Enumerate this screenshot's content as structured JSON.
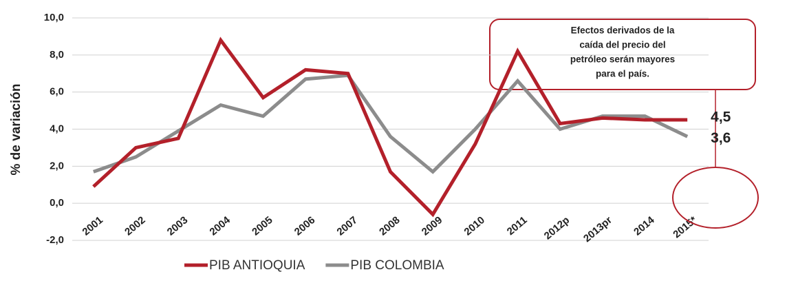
{
  "chart_data": {
    "type": "line",
    "y_label": "% de variación",
    "categories": [
      "2001",
      "2002",
      "2003",
      "2004",
      "2005",
      "2006",
      "2007",
      "2008",
      "2009",
      "2010",
      "2011",
      "2012p",
      "2013pr",
      "2014",
      "2015*"
    ],
    "series": [
      {
        "name": "PIB ANTIOQUIA",
        "color": "#b3202a",
        "values": [
          0.9,
          3.0,
          3.5,
          8.8,
          5.7,
          7.2,
          7.0,
          1.7,
          -0.6,
          3.2,
          8.2,
          4.3,
          4.6,
          4.5,
          4.5
        ],
        "value_labels": [
          null,
          null,
          null,
          null,
          null,
          null,
          null,
          null,
          null,
          null,
          null,
          null,
          null,
          null,
          "4,5"
        ]
      },
      {
        "name": "PIB COLOMBIA",
        "color": "#8c8c8c",
        "values": [
          1.7,
          2.5,
          3.9,
          5.3,
          4.7,
          6.7,
          6.9,
          3.6,
          1.7,
          4.0,
          6.6,
          4.0,
          4.7,
          4.7,
          3.6
        ],
        "value_labels": [
          null,
          null,
          null,
          null,
          null,
          null,
          null,
          null,
          null,
          null,
          null,
          null,
          null,
          null,
          "3,6"
        ]
      }
    ],
    "ylim": [
      -2,
      10
    ],
    "yticks": [
      {
        "value": -2,
        "label": "-2,0"
      },
      {
        "value": 0,
        "label": "0,0"
      },
      {
        "value": 2,
        "label": "2,0"
      },
      {
        "value": 4,
        "label": "4,0"
      },
      {
        "value": 6,
        "label": "6,0"
      },
      {
        "value": 8,
        "label": "8,0"
      },
      {
        "value": 10,
        "label": "10,0"
      }
    ],
    "grid": true,
    "legend": "bottom",
    "annotation": [
      "Efectos derivados de la",
      "caída del precio del",
      "petróleo serán mayores",
      "para el país."
    ]
  }
}
